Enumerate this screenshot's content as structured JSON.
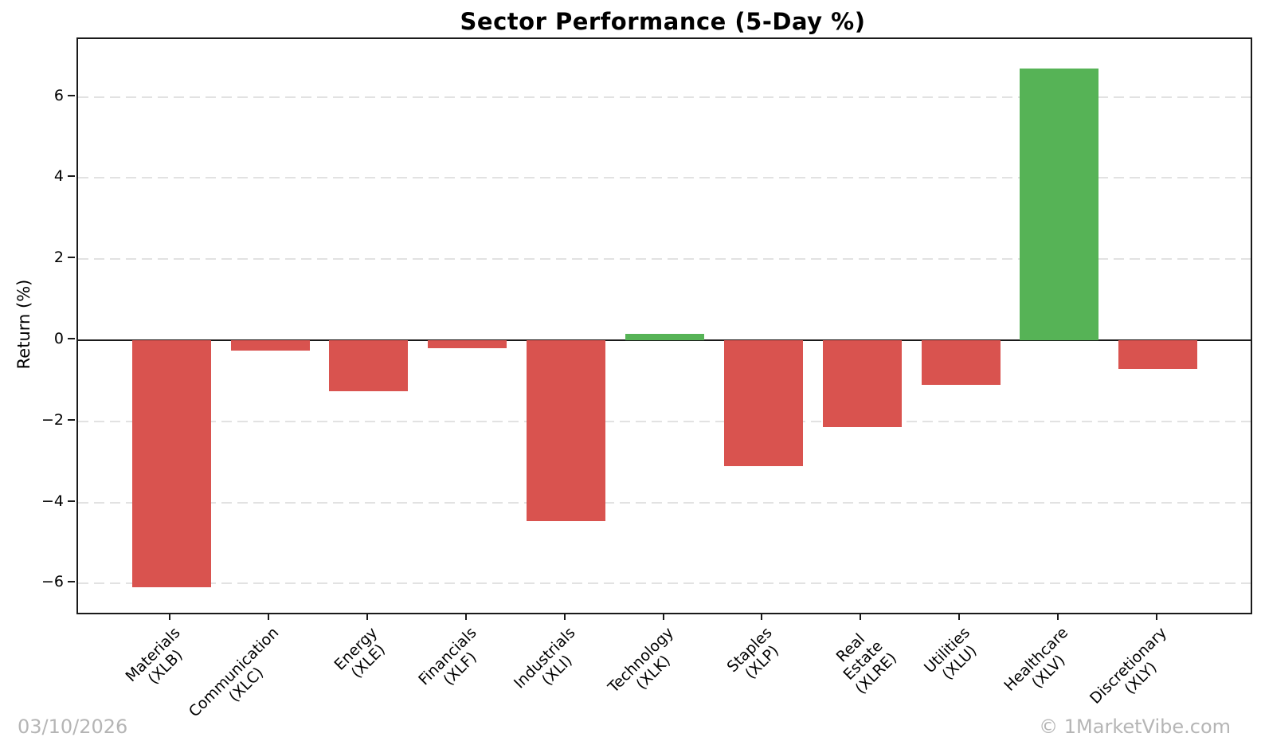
{
  "page": {
    "date_stamp": "03/10/2026",
    "watermark": "© 1MarketVibe.com"
  },
  "chart_data": {
    "type": "bar",
    "title": "Sector Performance (5-Day %)",
    "xlabel": "",
    "ylabel": "Return (%)",
    "bars": [
      {
        "sector": "Materials",
        "ticker": "XLB",
        "value": -6.1
      },
      {
        "sector": "Communication",
        "ticker": "XLC",
        "value": -0.25
      },
      {
        "sector": "Energy",
        "ticker": "XLE",
        "value": -1.25
      },
      {
        "sector": "Financials",
        "ticker": "XLF",
        "value": -0.2
      },
      {
        "sector": "Industrials",
        "ticker": "XLI",
        "value": -4.45
      },
      {
        "sector": "Technology",
        "ticker": "XLK",
        "value": 0.15
      },
      {
        "sector": "Staples",
        "ticker": "XLP",
        "value": -3.1
      },
      {
        "sector": "Real Estate",
        "ticker": "XLRE",
        "value": -2.15
      },
      {
        "sector": "Utilities",
        "ticker": "XLU",
        "value": -1.1
      },
      {
        "sector": "Healthcare",
        "ticker": "XLV",
        "value": 6.7
      },
      {
        "sector": "Discretionary",
        "ticker": "XLY",
        "value": -0.7
      }
    ],
    "y_ticks": [
      6,
      4,
      2,
      0,
      -2,
      -4,
      -6
    ],
    "ylim": [
      -6.7,
      7.45
    ],
    "grid": true,
    "legend": "none",
    "colors": {
      "positive": "#56b356",
      "negative": "#d9534f",
      "grid": "#e2e2e2",
      "axis": "#1a1a1a",
      "footer_text": "#b5b5b5"
    }
  }
}
